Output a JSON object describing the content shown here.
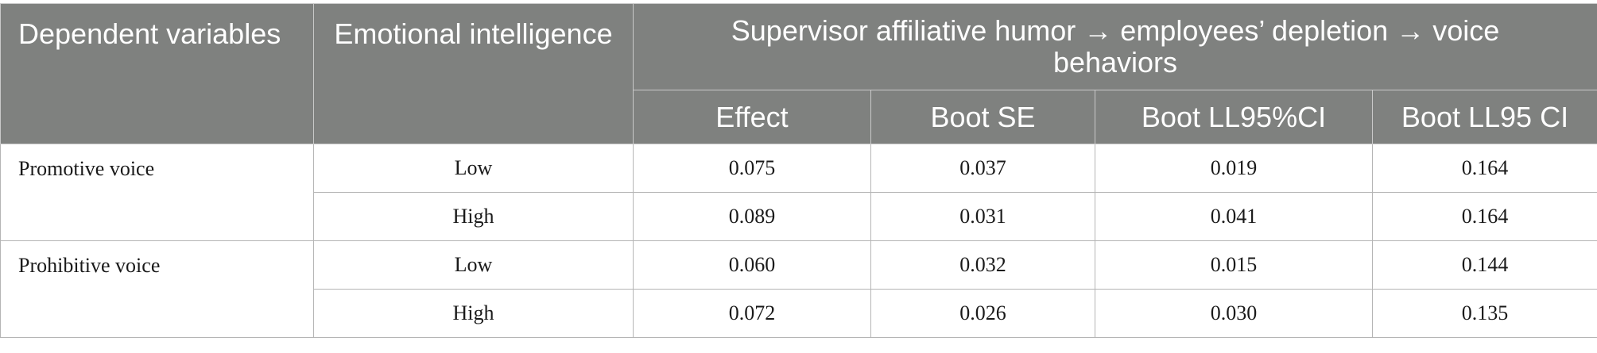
{
  "table": {
    "header": {
      "dependent": "Dependent variables",
      "moderator": "Emotional intelligence",
      "group": "Supervisor affiliative humor → employees’ depletion → voice behaviors",
      "columns": [
        "Effect",
        "Boot SE",
        "Boot LL95%CI",
        "Boot LL95 CI"
      ]
    },
    "groups": [
      {
        "dependent": "Promotive voice",
        "rows": [
          {
            "ei": "Low",
            "values": [
              "0.075",
              "0.037",
              "0.019",
              "0.164"
            ]
          },
          {
            "ei": "High",
            "values": [
              "0.089",
              "0.031",
              "0.041",
              "0.164"
            ]
          }
        ]
      },
      {
        "dependent": "Prohibitive voice",
        "rows": [
          {
            "ei": "Low",
            "values": [
              "0.060",
              "0.032",
              "0.015",
              "0.144"
            ]
          },
          {
            "ei": "High",
            "values": [
              "0.072",
              "0.026",
              "0.030",
              "0.135"
            ]
          }
        ]
      }
    ]
  },
  "colors": {
    "header_bg": "#7f817f",
    "header_text": "#ffffff",
    "body_text": "#1a1a1a",
    "grid": "#b5b5b5"
  }
}
